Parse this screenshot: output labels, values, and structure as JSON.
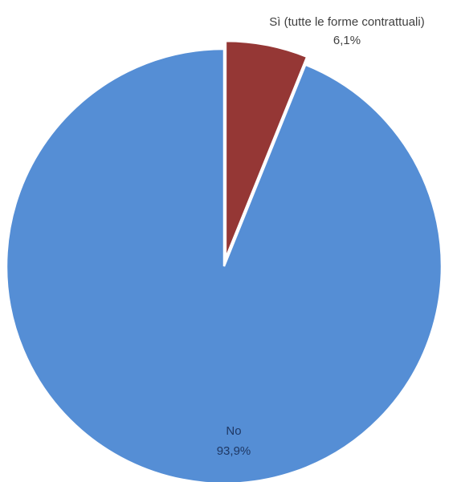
{
  "chart_data": {
    "type": "pie",
    "slices": [
      {
        "label": "Sì (tutte le forme contrattuali)",
        "value": 6.1,
        "value_label": "6,1%",
        "color": "#953735",
        "exploded": true
      },
      {
        "label": "No",
        "value": 93.9,
        "value_label": "93,9%",
        "color": "#558ED5",
        "exploded": false
      }
    ],
    "start_angle_deg": 0,
    "direction": "clockwise",
    "label_color": "#404040",
    "in_slice_label_color": "#1F3864"
  }
}
